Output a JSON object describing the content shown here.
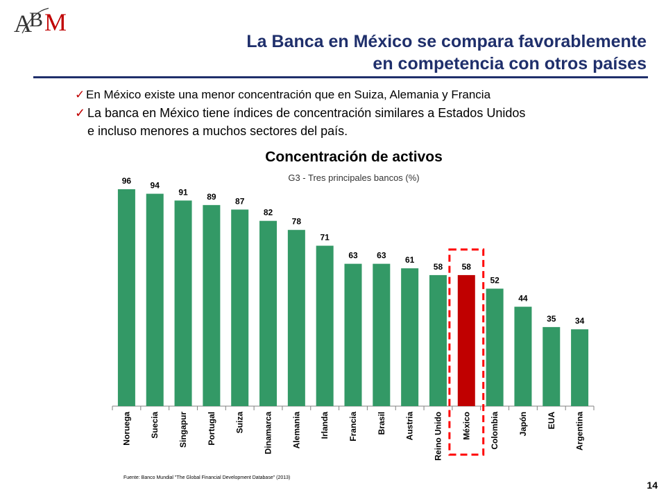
{
  "header": {
    "logo_text": "ABM",
    "title_line1": "La Banca en México se compara favorablemente",
    "title_line2": "en competencia con otros países"
  },
  "bullets": [
    {
      "text": "En México existe una menor concentración que en Suiza, Alemania y Francia"
    },
    {
      "text": "La banca en México tiene índices de concentración similares a Estados Unidos"
    }
  ],
  "bullet_continuation": "e incluso menores a muchos sectores del país.",
  "chart_data": {
    "type": "bar",
    "title": "Concentración de activos",
    "subtitle": "G3 - Tres principales bancos (%)",
    "categories": [
      "Noruega",
      "Suecia",
      "Singapur",
      "Portugal",
      "Suiza",
      "Dinamarca",
      "Alemania",
      "Irlanda",
      "Francia",
      "Brasil",
      "Austria",
      "Reino Unido",
      "México",
      "Colombia",
      "Japón",
      "EUA",
      "Argentina"
    ],
    "values": [
      96,
      94,
      91,
      89,
      87,
      82,
      78,
      71,
      63,
      63,
      61,
      58,
      58,
      52,
      44,
      35,
      34
    ],
    "highlight": "México",
    "ylim": [
      0,
      100
    ],
    "colors": {
      "bar": "#339966",
      "highlight": "#c00000",
      "highlight_box": "#ff0000"
    },
    "grid": false
  },
  "footer": {
    "source": "Fuente: Banco Mundial \"The Global Financial Development Database\" (2013)",
    "page_number": "14"
  }
}
